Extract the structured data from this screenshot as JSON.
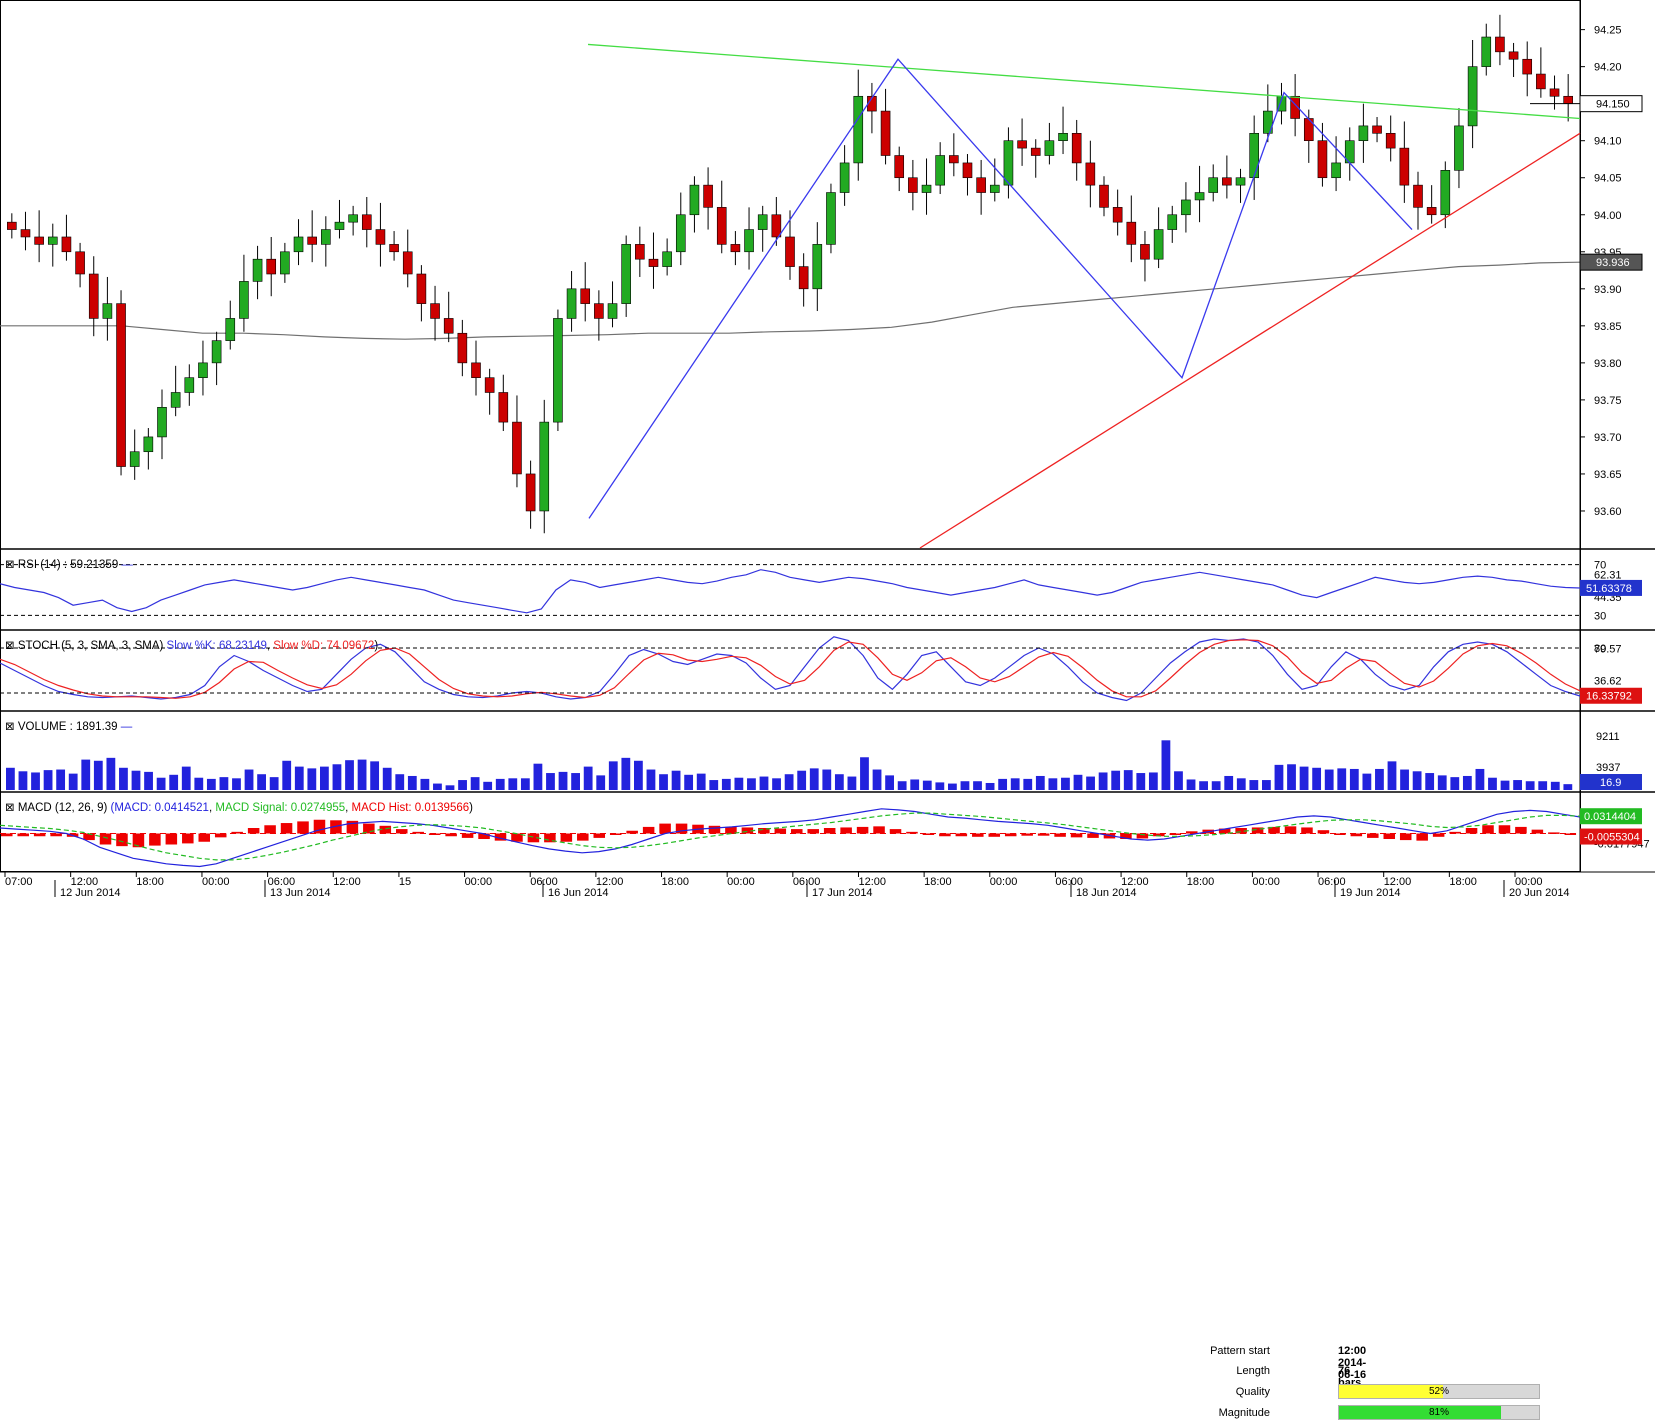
{
  "chart_data": {
    "type": "candlestick",
    "instrument_last_price": "94.150",
    "sma_value_label": "93.936",
    "price_axis": {
      "range": [
        93.55,
        94.29
      ],
      "ticks": [
        "94.25",
        "94.20",
        "94.15",
        "94.10",
        "94.05",
        "94.00",
        "93.95",
        "93.90",
        "93.85",
        "93.80",
        "93.75",
        "93.70",
        "93.65",
        "93.60"
      ]
    },
    "pattern_info": {
      "start_label": "Pattern start",
      "start_value": "12:00 2014-06-16",
      "length_label": "Length",
      "length_value": "76 bars",
      "quality_label": "Quality",
      "quality_value": "52%",
      "quality_fraction": 0.52,
      "magnitude_label": "Magnitude",
      "magnitude_value": "81%",
      "magnitude_fraction": 0.81
    },
    "close_trend": [
      93.98,
      93.97,
      93.96,
      93.97,
      93.95,
      93.92,
      93.86,
      93.88,
      93.66,
      93.68,
      93.7,
      93.74,
      93.76,
      93.78,
      93.8,
      93.83,
      93.86,
      93.91,
      93.94,
      93.92,
      93.95,
      93.97,
      93.96,
      93.98,
      93.99,
      94.0,
      93.98,
      93.96,
      93.95,
      93.92,
      93.88,
      93.86,
      93.84,
      93.8,
      93.78,
      93.76,
      93.72,
      93.65,
      93.6,
      93.72,
      93.86,
      93.9,
      93.88,
      93.86,
      93.88,
      93.96,
      93.94,
      93.93,
      93.95,
      94.0,
      94.04,
      94.01,
      93.96,
      93.95,
      93.98,
      94.0,
      93.97,
      93.93,
      93.9,
      93.96,
      94.03,
      94.07,
      94.16,
      94.14,
      94.08,
      94.05,
      94.03,
      94.04,
      94.08,
      94.07,
      94.05,
      94.03,
      94.04,
      94.1,
      94.09,
      94.08,
      94.1,
      94.11,
      94.07,
      94.04,
      94.01,
      93.99,
      93.96,
      93.94,
      93.98,
      94.0,
      94.02,
      94.03,
      94.05,
      94.04,
      94.05,
      94.11,
      94.14,
      94.16,
      94.13,
      94.1,
      94.05,
      94.07,
      94.1,
      94.12,
      94.11,
      94.09,
      94.04,
      94.01,
      94.0,
      94.06,
      94.12,
      94.2,
      94.24,
      94.22,
      94.21,
      94.19,
      94.17,
      94.16,
      94.15
    ],
    "sma_trend": [
      93.85,
      93.85,
      93.85,
      93.85,
      93.845,
      93.84,
      93.84,
      93.838,
      93.835,
      93.833,
      93.832,
      93.833,
      93.835,
      93.836,
      93.837,
      93.838,
      93.84,
      93.84,
      93.84,
      93.842,
      93.843,
      93.845,
      93.848,
      93.855,
      93.865,
      93.875,
      93.88,
      93.885,
      93.89,
      93.895,
      93.9,
      93.905,
      93.91,
      93.915,
      93.92,
      93.925,
      93.93,
      93.932,
      93.935,
      93.936
    ],
    "rsi": {
      "label": "RSI (14) : 59.21359",
      "current": "51.63378",
      "ticks": [
        "70",
        "62.31",
        "44.35",
        "30"
      ],
      "range": [
        20,
        80
      ],
      "values": [
        55,
        52,
        50,
        48,
        44,
        38,
        40,
        42,
        36,
        33,
        36,
        42,
        46,
        50,
        54,
        56,
        58,
        56,
        54,
        52,
        50,
        52,
        55,
        58,
        60,
        58,
        56,
        54,
        52,
        50,
        46,
        42,
        40,
        38,
        36,
        34,
        32,
        35,
        50,
        58,
        56,
        52,
        54,
        56,
        58,
        60,
        58,
        56,
        55,
        57,
        60,
        62,
        66,
        64,
        60,
        58,
        56,
        58,
        60,
        59,
        57,
        55,
        52,
        50,
        48,
        46,
        48,
        50,
        52,
        55,
        58,
        54,
        52,
        50,
        48,
        46,
        48,
        52,
        56,
        58,
        60,
        62,
        64,
        62,
        60,
        58,
        56,
        54,
        50,
        46,
        44,
        48,
        52,
        56,
        60,
        58,
        56,
        55,
        56,
        58,
        60,
        61,
        60,
        58,
        57,
        55,
        53,
        52,
        51.6
      ]
    },
    "stoch": {
      "label": "STOCH (5, 3, SMA, 3, SMA) ",
      "k_label": "Slow %K: 68.23149",
      "sep": ", ",
      "d_label": "Slow %D: 74.09672",
      "end": ")",
      "ticks": [
        "80",
        "79.57",
        "36.62",
        "20"
      ],
      "current": "16.33792",
      "range": [
        0,
        100
      ],
      "k": [
        60,
        50,
        40,
        30,
        22,
        18,
        15,
        14,
        15,
        16,
        14,
        12,
        14,
        18,
        30,
        55,
        70,
        62,
        50,
        40,
        30,
        22,
        25,
        45,
        65,
        80,
        85,
        75,
        55,
        35,
        25,
        18,
        15,
        14,
        16,
        20,
        22,
        20,
        15,
        12,
        14,
        22,
        45,
        70,
        78,
        72,
        62,
        58,
        65,
        72,
        70,
        60,
        40,
        25,
        30,
        55,
        80,
        95,
        90,
        70,
        40,
        25,
        45,
        70,
        75,
        55,
        35,
        30,
        40,
        55,
        70,
        80,
        72,
        55,
        35,
        20,
        14,
        10,
        20,
        40,
        60,
        75,
        88,
        92,
        90,
        92,
        88,
        70,
        45,
        25,
        30,
        55,
        75,
        65,
        45,
        30,
        24,
        30,
        55,
        75,
        85,
        88,
        85,
        75,
        60,
        45,
        30,
        22,
        16
      ],
      "d": [
        65,
        58,
        48,
        38,
        30,
        24,
        19,
        16,
        15,
        15,
        15,
        14,
        13,
        15,
        21,
        34,
        52,
        62,
        61,
        50,
        40,
        31,
        26,
        31,
        45,
        63,
        77,
        80,
        72,
        55,
        38,
        26,
        19,
        16,
        15,
        16,
        19,
        21,
        19,
        16,
        14,
        17,
        27,
        46,
        64,
        73,
        71,
        64,
        62,
        65,
        69,
        67,
        57,
        42,
        32,
        37,
        55,
        77,
        88,
        85,
        67,
        45,
        37,
        47,
        63,
        67,
        55,
        40,
        35,
        42,
        55,
        68,
        74,
        69,
        54,
        37,
        23,
        15,
        15,
        23,
        40,
        58,
        74,
        85,
        90,
        91,
        90,
        83,
        68,
        47,
        33,
        37,
        53,
        65,
        62,
        47,
        33,
        28,
        36,
        53,
        72,
        83,
        86,
        83,
        73,
        60,
        45,
        32,
        23
      ]
    },
    "volume": {
      "label": "VOLUME : 1891.39",
      "ticks": [
        "9211",
        "3937"
      ],
      "current": "16.9",
      "range": [
        0,
        13000
      ],
      "values": [
        3800,
        3200,
        3000,
        3400,
        3500,
        2800,
        5200,
        5000,
        5500,
        3800,
        3300,
        3100,
        2100,
        2600,
        4000,
        2100,
        1900,
        2200,
        2000,
        3500,
        2700,
        2200,
        5000,
        4000,
        3700,
        4000,
        4400,
        5100,
        5200,
        4900,
        3800,
        2700,
        2400,
        1900,
        1100,
        800,
        1700,
        2200,
        1400,
        1900,
        2000,
        2000,
        4500,
        2900,
        3100,
        2900,
        4000,
        2500,
        4900,
        5500,
        5000,
        3500,
        2700,
        3300,
        2600,
        2800,
        1700,
        1900,
        2100,
        2000,
        2300,
        2000,
        2700,
        3300,
        3700,
        3500,
        2700,
        2300,
        5600,
        3500,
        2500,
        1500,
        1800,
        1600,
        1300,
        1100,
        1500,
        1500,
        1200,
        1900,
        2000,
        1900,
        2400,
        2000,
        2100,
        2600,
        2300,
        3000,
        3300,
        3400,
        2900,
        3000,
        8500,
        3200,
        1800,
        1500,
        1500,
        2400,
        2000,
        1700,
        1700,
        4300,
        4400,
        4000,
        3800,
        3500,
        3700,
        3600,
        2800,
        3600,
        4900,
        3500,
        3200,
        2900,
        2500,
        2200,
        2400,
        3600,
        2100,
        1600,
        1700,
        1500,
        1500,
        1400,
        1000
      ]
    },
    "macd": {
      "label": "MACD (12, 26, 9) ",
      "main_label": "(MACD: 0.0414521",
      "sep": ", ",
      "signal_label": "MACD Signal: 0.0274955",
      "hist_label": "MACD Hist: 0.0139566",
      "end": ")",
      "ticks": [
        "0.0314404",
        "-0.0055304",
        "-0.0177947"
      ],
      "range": [
        -0.07,
        0.07
      ],
      "macd": [
        0.01,
        0.008,
        0.006,
        0.004,
        0.0,
        -0.01,
        -0.025,
        -0.035,
        -0.045,
        -0.05,
        -0.055,
        -0.058,
        -0.06,
        -0.055,
        -0.045,
        -0.035,
        -0.025,
        -0.015,
        -0.005,
        0.005,
        0.012,
        0.018,
        0.02,
        0.022,
        0.02,
        0.018,
        0.015,
        0.01,
        0.005,
        0.0,
        -0.008,
        -0.015,
        -0.022,
        -0.028,
        -0.032,
        -0.035,
        -0.033,
        -0.028,
        -0.02,
        -0.01,
        0.0,
        0.005,
        0.008,
        0.01,
        0.012,
        0.015,
        0.018,
        0.02,
        0.022,
        0.025,
        0.03,
        0.035,
        0.04,
        0.045,
        0.043,
        0.04,
        0.035,
        0.03,
        0.028,
        0.025,
        0.022,
        0.02,
        0.018,
        0.015,
        0.01,
        0.005,
        0.0,
        -0.005,
        -0.01,
        -0.012,
        -0.01,
        -0.005,
        0.0,
        0.005,
        0.01,
        0.015,
        0.02,
        0.025,
        0.03,
        0.032,
        0.03,
        0.025,
        0.02,
        0.015,
        0.01,
        0.005,
        0.0,
        0.005,
        0.015,
        0.025,
        0.035,
        0.04,
        0.042,
        0.04,
        0.035,
        0.03
      ],
      "signal": [
        0.015,
        0.013,
        0.011,
        0.009,
        0.006,
        0.002,
        -0.005,
        -0.012,
        -0.02,
        -0.028,
        -0.035,
        -0.04,
        -0.045,
        -0.048,
        -0.048,
        -0.045,
        -0.04,
        -0.034,
        -0.027,
        -0.02,
        -0.012,
        -0.005,
        0.002,
        0.008,
        0.012,
        0.015,
        0.016,
        0.015,
        0.013,
        0.01,
        0.005,
        0.0,
        -0.006,
        -0.012,
        -0.017,
        -0.022,
        -0.025,
        -0.026,
        -0.025,
        -0.022,
        -0.018,
        -0.013,
        -0.008,
        -0.004,
        0.0,
        0.004,
        0.008,
        0.011,
        0.014,
        0.017,
        0.02,
        0.024,
        0.028,
        0.032,
        0.035,
        0.037,
        0.037,
        0.035,
        0.033,
        0.031,
        0.028,
        0.025,
        0.022,
        0.019,
        0.016,
        0.012,
        0.008,
        0.004,
        0.0,
        -0.003,
        -0.005,
        -0.005,
        -0.004,
        -0.002,
        0.001,
        0.005,
        0.009,
        0.013,
        0.017,
        0.021,
        0.024,
        0.025,
        0.025,
        0.023,
        0.02,
        0.017,
        0.013,
        0.011,
        0.012,
        0.015,
        0.02,
        0.025,
        0.03,
        0.033,
        0.033,
        0.0315
      ]
    },
    "time_axis": {
      "time_labels": [
        "07:00",
        "12:00",
        "18:00",
        "00:00",
        "06:00",
        "12:00",
        "15",
        "00:00",
        "06:00",
        "12:00",
        "18:00",
        "00:00",
        "06:00",
        "12:00",
        "18:00",
        "00:00",
        "06:00",
        "12:00",
        "18:00",
        "00:00",
        "06:00",
        "12:00",
        "18:00",
        "00:00"
      ],
      "date_labels": [
        "12 Jun 2014",
        "13 Jun 2014",
        "16 Jun 2014",
        "17 Jun 2014",
        "18 Jun 2014",
        "19 Jun 2014",
        "20 Jun 2014"
      ]
    },
    "colors": {
      "bull": "#22aa22",
      "bear": "#cc0000",
      "zigzag": "#3a3aee",
      "upper_trend": "#44dd44",
      "lower_trend": "#ee2222",
      "sma": "#707070",
      "rsi_line": "#3333dd",
      "stoch_k": "#3333dd",
      "stoch_d": "#ee2222",
      "volume": "#2222dd",
      "macd_line": "#2222dd",
      "signal_line": "#22bb22",
      "hist": "#ee0000",
      "quality_fill": "#ffff33",
      "magnitude_fill": "#33dd33"
    }
  }
}
